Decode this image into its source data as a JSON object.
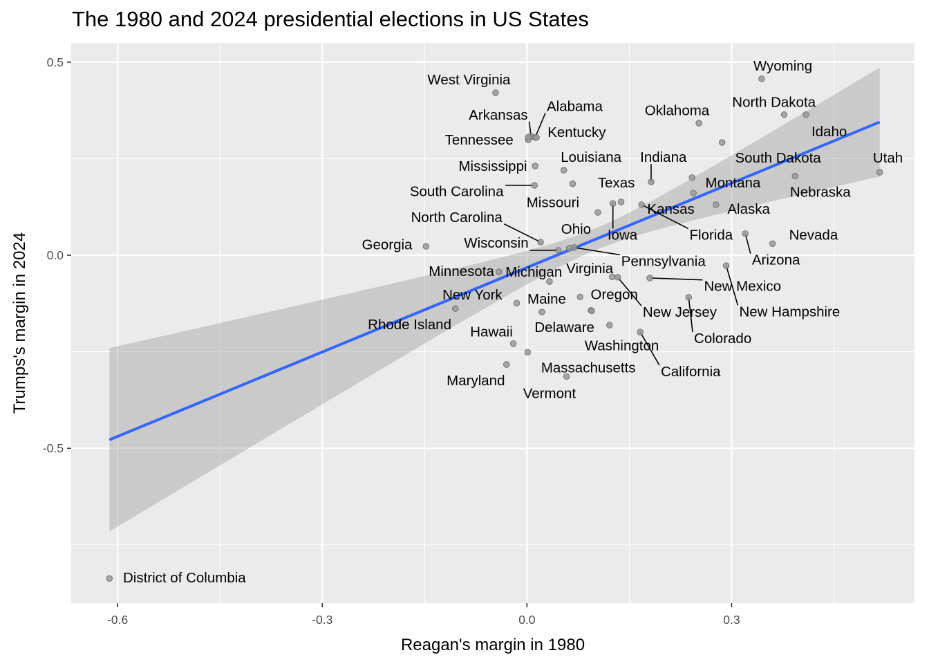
{
  "chart_data": {
    "type": "scatter",
    "title": "The 1980 and 2024 presidential elections in US States",
    "xlabel": "Reagan's margin in 1980",
    "ylabel": "Trumps's margin in 2024",
    "xlim": [
      -0.668,
      0.568
    ],
    "ylim": [
      -0.901,
      0.55
    ],
    "x_ticks": [
      -0.6,
      -0.3,
      0.0,
      0.3
    ],
    "x_tick_labels": [
      "-0.6",
      "-0.3",
      "0.0",
      "0.3"
    ],
    "x_minor": [
      -0.45,
      -0.15,
      0.15,
      0.45
    ],
    "y_ticks": [
      0.5,
      0.0,
      -0.5
    ],
    "y_tick_labels": [
      "0.5",
      "0.0",
      "-0.5"
    ],
    "y_minor": [
      0.25,
      -0.25,
      -0.75
    ],
    "grid": true,
    "colors": {
      "panel": "#ebebeb",
      "grid": "#ffffff",
      "point_fill": "#999999",
      "point_stroke": "#666666",
      "line": "#3366ff",
      "ribbon": "#c8c8c8"
    },
    "smooth": {
      "method": "lm",
      "x_range": [
        -0.612,
        0.517
      ],
      "fit_endpoints": [
        [
          -0.612,
          -0.478
        ],
        [
          0.517,
          0.345
        ]
      ],
      "ci_lower_endpoints": [
        [
          -0.612,
          -0.712
        ],
        [
          0.517,
          0.21
        ]
      ],
      "ci_upper_endpoints": [
        [
          -0.612,
          -0.246
        ],
        [
          0.517,
          0.482
        ]
      ]
    },
    "points": [
      {
        "name": "West Virginia",
        "x": -0.046,
        "y": 0.421,
        "lx": -0.085,
        "ly": 0.455
      },
      {
        "name": "Arkansas",
        "x": 0.006,
        "y": 0.308,
        "lx": -0.042,
        "ly": 0.364,
        "leader": true
      },
      {
        "name": "Tennessee",
        "x": 0.002,
        "y": 0.299,
        "lx": -0.07,
        "ly": 0.299
      },
      {
        "name": "Alabama",
        "x": 0.012,
        "y": 0.305,
        "lx": 0.07,
        "ly": 0.386,
        "leader": true
      },
      {
        "name": "Kentucky",
        "x": 0.014,
        "y": 0.305,
        "lx": 0.073,
        "ly": 0.319
      },
      {
        "name": "Mississippi",
        "x": 0.012,
        "y": 0.231,
        "lx": -0.05,
        "ly": 0.231
      },
      {
        "name": "Louisiana",
        "x": 0.054,
        "y": 0.22,
        "lx": 0.094,
        "ly": 0.254
      },
      {
        "name": "South Carolina",
        "x": 0.011,
        "y": 0.181,
        "lx": -0.103,
        "ly": 0.166,
        "leader": true
      },
      {
        "name": "Missouri",
        "x": 0.067,
        "y": 0.185,
        "lx": 0.038,
        "ly": 0.137
      },
      {
        "name": "North Carolina",
        "x": 0.02,
        "y": 0.034,
        "lx": -0.103,
        "ly": 0.099,
        "leader": true
      },
      {
        "name": "Oklahoma",
        "x": 0.252,
        "y": 0.342,
        "lx": 0.22,
        "ly": 0.375
      },
      {
        "name": "Wyoming",
        "x": 0.344,
        "y": 0.457,
        "lx": 0.375,
        "ly": 0.491
      },
      {
        "name": "North Dakota",
        "x": 0.377,
        "y": 0.364,
        "lx": 0.362,
        "ly": 0.397
      },
      {
        "name": "Idaho",
        "x": 0.409,
        "y": 0.364,
        "lx": 0.443,
        "ly": 0.321
      },
      {
        "name": "South Dakota",
        "x": 0.286,
        "y": 0.292,
        "lx": 0.368,
        "ly": 0.253
      },
      {
        "name": "Nebraska",
        "x": 0.393,
        "y": 0.205,
        "lx": 0.43,
        "ly": 0.164
      },
      {
        "name": "Utah",
        "x": 0.517,
        "y": 0.215,
        "lx": 0.529,
        "ly": 0.253
      },
      {
        "name": "Indiana",
        "x": 0.182,
        "y": 0.19,
        "lx": 0.2,
        "ly": 0.254,
        "leader": true
      },
      {
        "name": "Montana",
        "x": 0.242,
        "y": 0.201,
        "lx": 0.302,
        "ly": 0.188
      },
      {
        "name": "Kansas",
        "x": 0.244,
        "y": 0.161,
        "lx": 0.211,
        "ly": 0.12
      },
      {
        "name": "Alaska",
        "x": 0.277,
        "y": 0.131,
        "lx": 0.325,
        "ly": 0.12
      },
      {
        "name": "Texas",
        "x": 0.138,
        "y": 0.138,
        "lx": 0.131,
        "ly": 0.188
      },
      {
        "name": "Iowa",
        "x": 0.126,
        "y": 0.134,
        "lx": 0.14,
        "ly": 0.053,
        "leader": true
      },
      {
        "name": "Ohio",
        "x": 0.104,
        "y": 0.111,
        "lx": 0.072,
        "ly": 0.068
      },
      {
        "name": "Florida",
        "x": 0.168,
        "y": 0.131,
        "lx": 0.27,
        "ly": 0.053,
        "leader": true
      },
      {
        "name": "Arizona",
        "x": 0.32,
        "y": 0.056,
        "lx": 0.365,
        "ly": -0.012,
        "leader": true
      },
      {
        "name": "Nevada",
        "x": 0.36,
        "y": 0.03,
        "lx": 0.42,
        "ly": 0.053
      },
      {
        "name": "Wisconsin",
        "x": 0.046,
        "y": 0.013,
        "lx": -0.045,
        "ly": 0.032,
        "leader": true
      },
      {
        "name": "Pennsylvania",
        "x": 0.069,
        "y": 0.02,
        "lx": 0.2,
        "ly": -0.015,
        "leader": true
      },
      {
        "name": "Virginia",
        "x": 0.062,
        "y": 0.018,
        "lx": 0.092,
        "ly": -0.034
      },
      {
        "name": "Georgia",
        "x": -0.148,
        "y": 0.023,
        "lx": -0.205,
        "ly": 0.028
      },
      {
        "name": "Minnesota",
        "x": -0.041,
        "y": -0.043,
        "lx": -0.096,
        "ly": -0.041
      },
      {
        "name": "Michigan",
        "x": 0.033,
        "y": -0.068,
        "lx": 0.01,
        "ly": -0.043
      },
      {
        "name": "New Mexico",
        "x": 0.18,
        "y": -0.059,
        "lx": 0.316,
        "ly": -0.08,
        "leader": true
      },
      {
        "name": "New Hampshire",
        "x": 0.292,
        "y": -0.027,
        "lx": 0.385,
        "ly": -0.146,
        "leader": true
      },
      {
        "name": "New York",
        "x": -0.015,
        "y": -0.124,
        "lx": -0.08,
        "ly": -0.102
      },
      {
        "name": "Maine",
        "x": 0.022,
        "y": -0.147,
        "lx": 0.029,
        "ly": -0.113
      },
      {
        "name": "Oregon",
        "x": 0.078,
        "y": -0.108,
        "lx": 0.128,
        "ly": -0.101
      },
      {
        "name": "New Jersey",
        "x": 0.133,
        "y": -0.057,
        "lx": 0.224,
        "ly": -0.147,
        "leader": true
      },
      {
        "name": "Colorado",
        "x": 0.237,
        "y": -0.109,
        "lx": 0.287,
        "ly": -0.215,
        "leader": true
      },
      {
        "name": "Rhode Island",
        "x": -0.105,
        "y": -0.138,
        "lx": -0.172,
        "ly": -0.179
      },
      {
        "name": "Delaware",
        "x": 0.121,
        "y": -0.181,
        "lx": 0.055,
        "ly": -0.186
      },
      {
        "name": "Washington",
        "x": 0.094,
        "y": -0.143,
        "lx": 0.139,
        "ly": -0.234
      },
      {
        "name": "California",
        "x": 0.166,
        "y": -0.199,
        "lx": 0.24,
        "ly": -0.301,
        "leader": true
      },
      {
        "name": "Hawaii",
        "x": -0.02,
        "y": -0.229,
        "lx": -0.052,
        "ly": -0.198
      },
      {
        "name": "Massachusetts",
        "x": 0.001,
        "y": -0.251,
        "lx": 0.09,
        "ly": -0.291
      },
      {
        "name": "Maryland",
        "x": -0.03,
        "y": -0.283,
        "lx": -0.075,
        "ly": -0.324
      },
      {
        "name": "Vermont",
        "x": 0.058,
        "y": -0.314,
        "lx": 0.033,
        "ly": -0.357
      },
      {
        "name": "District of Columbia",
        "x": -0.612,
        "y": -0.837,
        "lx": -0.502,
        "ly": -0.835
      },
      {
        "name": "",
        "x": 0.125,
        "y": -0.056
      },
      {
        "name": "",
        "x": 0.095,
        "y": -0.144
      },
      {
        "name": "",
        "x": 0.002,
        "y": 0.306
      }
    ]
  }
}
